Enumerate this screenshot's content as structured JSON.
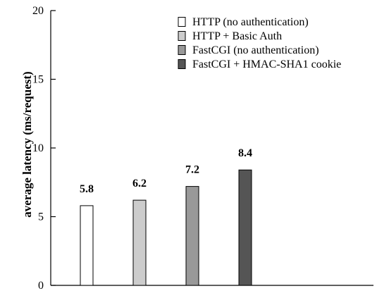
{
  "chart_data": {
    "type": "bar",
    "title": "",
    "xlabel": "",
    "ylabel": "average latency (ms/request)",
    "ylim": [
      0,
      20
    ],
    "yticks": [
      0,
      5,
      10,
      15,
      20
    ],
    "grid": false,
    "legend_position": "top-right",
    "series": [
      {
        "name": "HTTP (no authentication)",
        "value": 5.8,
        "label": "5.8",
        "color": "#ffffff"
      },
      {
        "name": "HTTP + Basic Auth",
        "value": 6.2,
        "label": "6.2",
        "color": "#cccccc"
      },
      {
        "name": "FastCGI (no authentication)",
        "value": 7.2,
        "label": "7.2",
        "color": "#999999"
      },
      {
        "name": "FastCGI + HMAC-SHA1 cookie",
        "value": 8.4,
        "label": "8.4",
        "color": "#555555"
      }
    ]
  }
}
